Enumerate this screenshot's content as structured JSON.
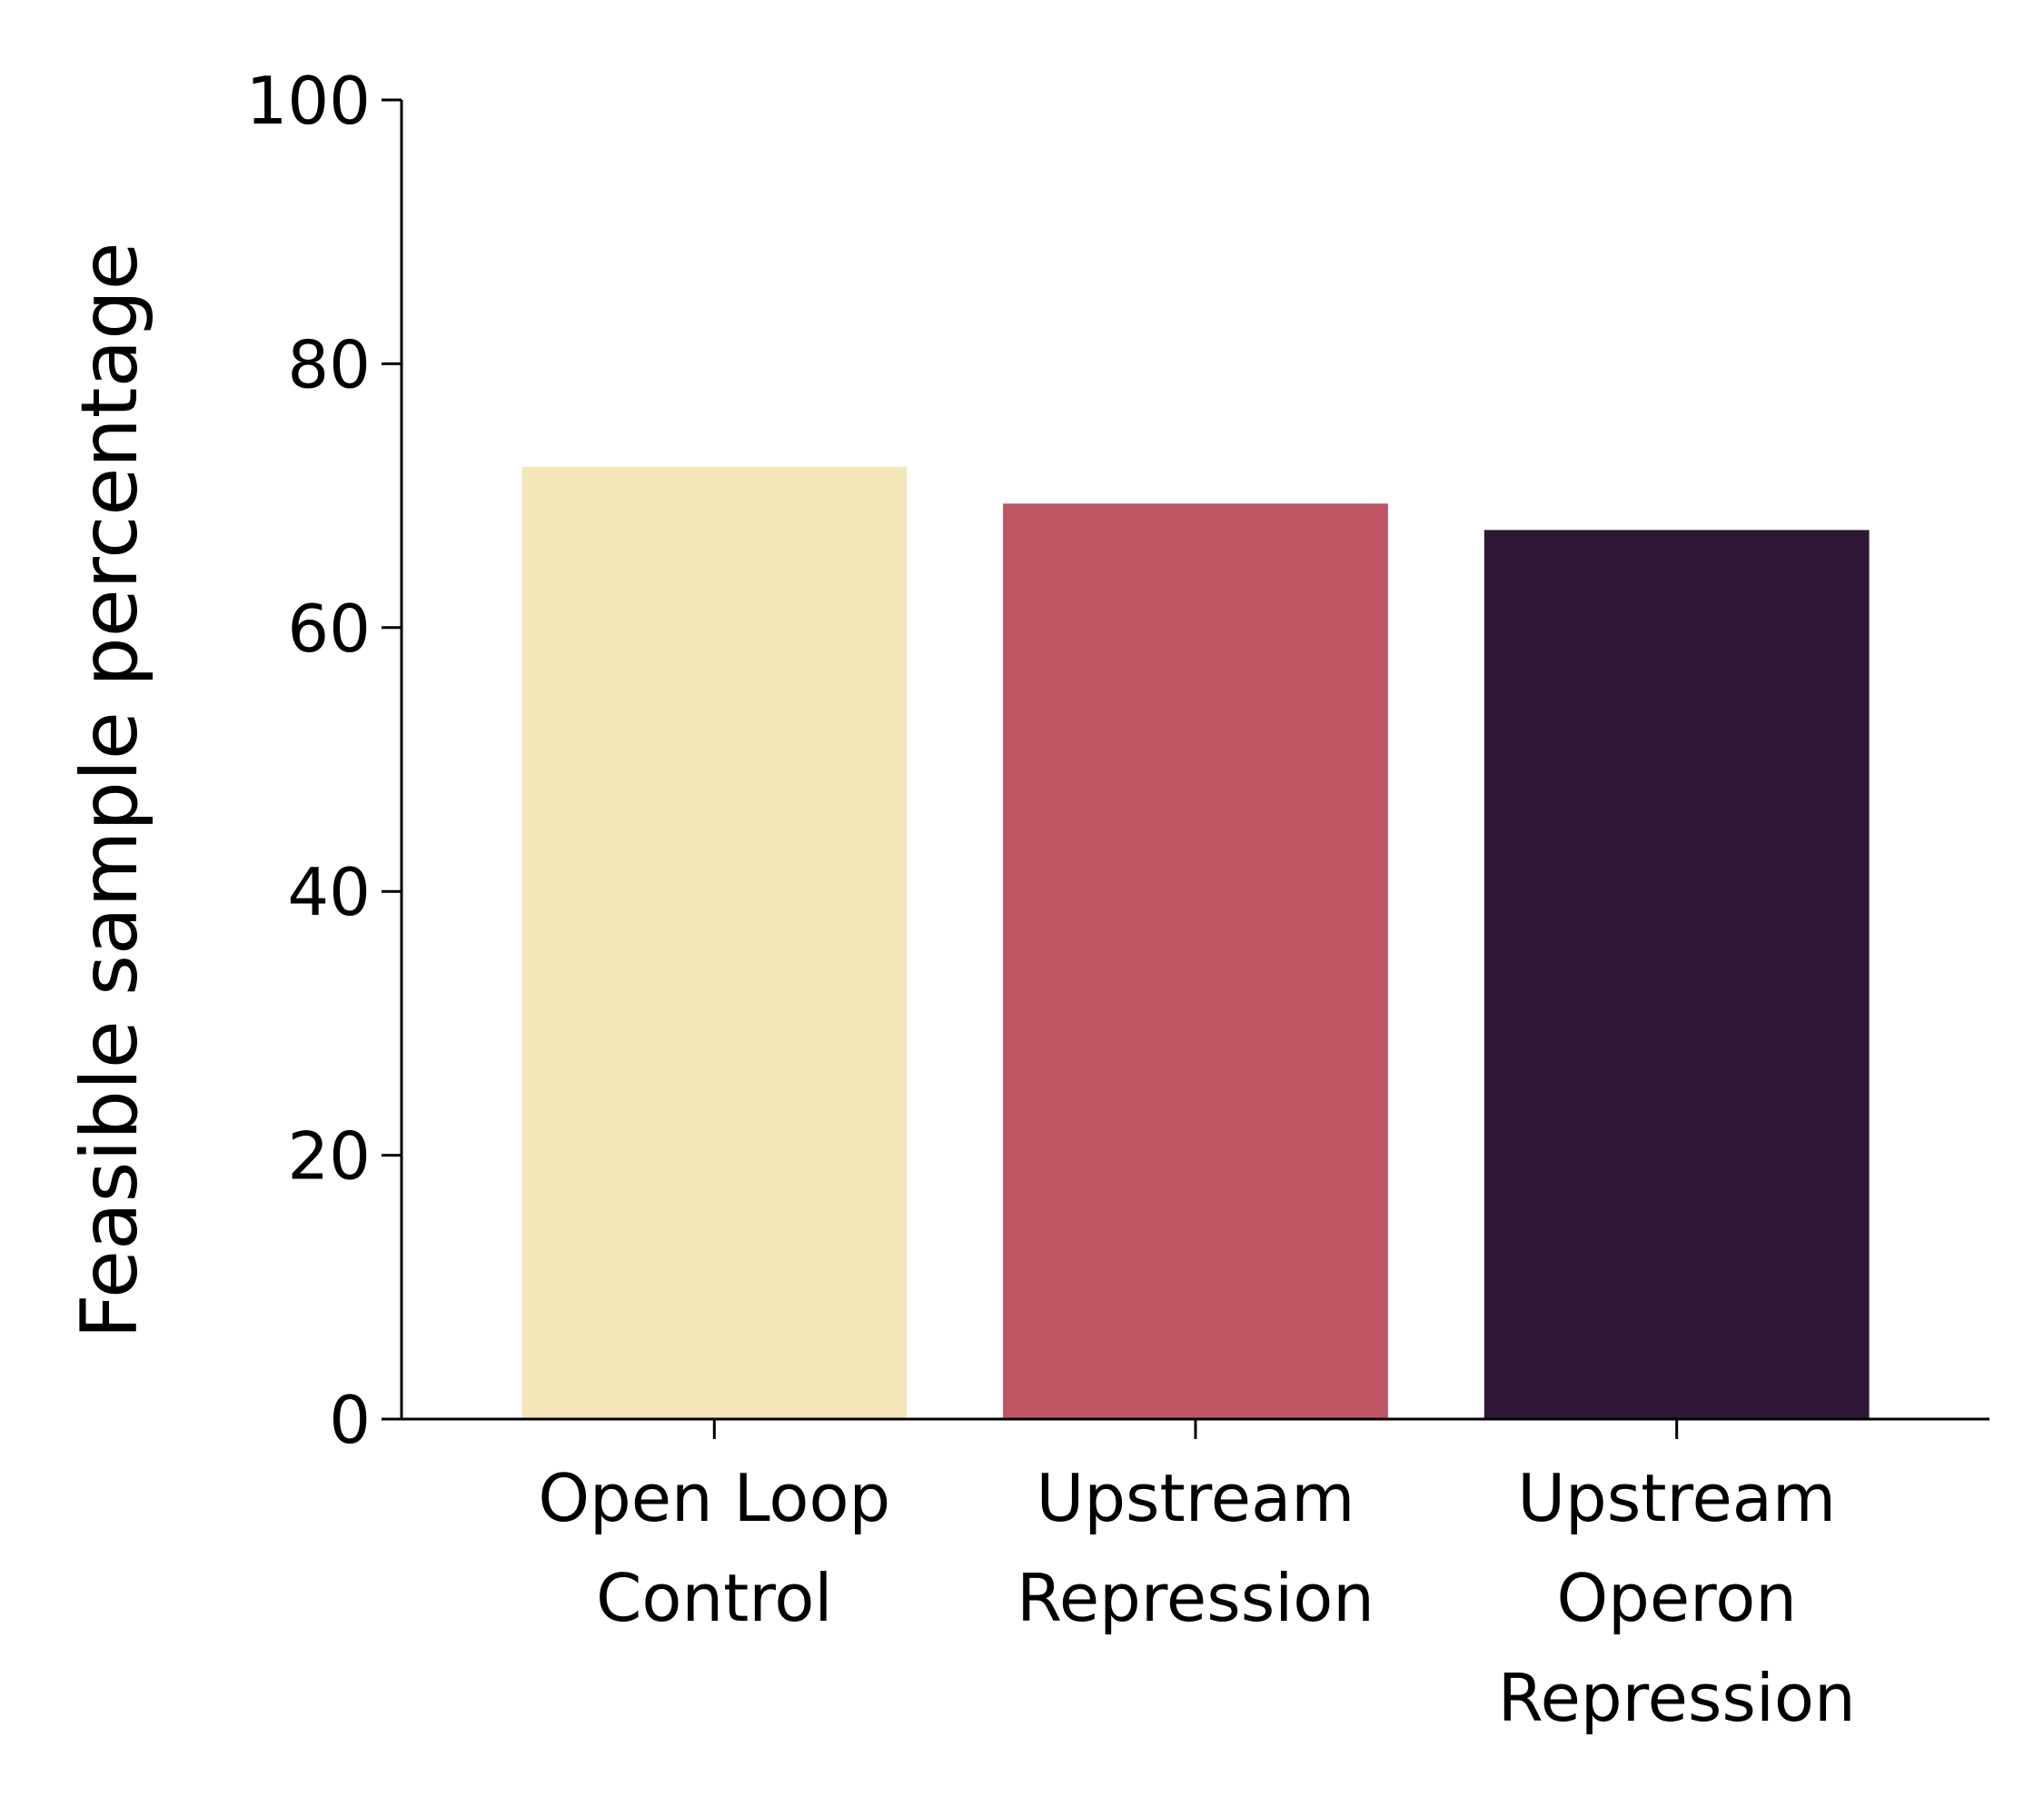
{
  "chart_data": {
    "type": "bar",
    "title": "",
    "xlabel": "",
    "ylabel": "Feasible sample percentage",
    "categories": [
      [
        "Open Loop",
        "Control"
      ],
      [
        "Upstream",
        "Repression"
      ],
      [
        "Upstream",
        "Operon",
        "Repression"
      ]
    ],
    "values": [
      72.2,
      69.4,
      67.4
    ],
    "colors": [
      "#f3e6b8",
      "#bd5563",
      "#2d1735"
    ],
    "ylim": [
      0,
      100
    ],
    "yticks": [
      0,
      20,
      40,
      60,
      80,
      100
    ],
    "grid": false,
    "legend": "none"
  }
}
